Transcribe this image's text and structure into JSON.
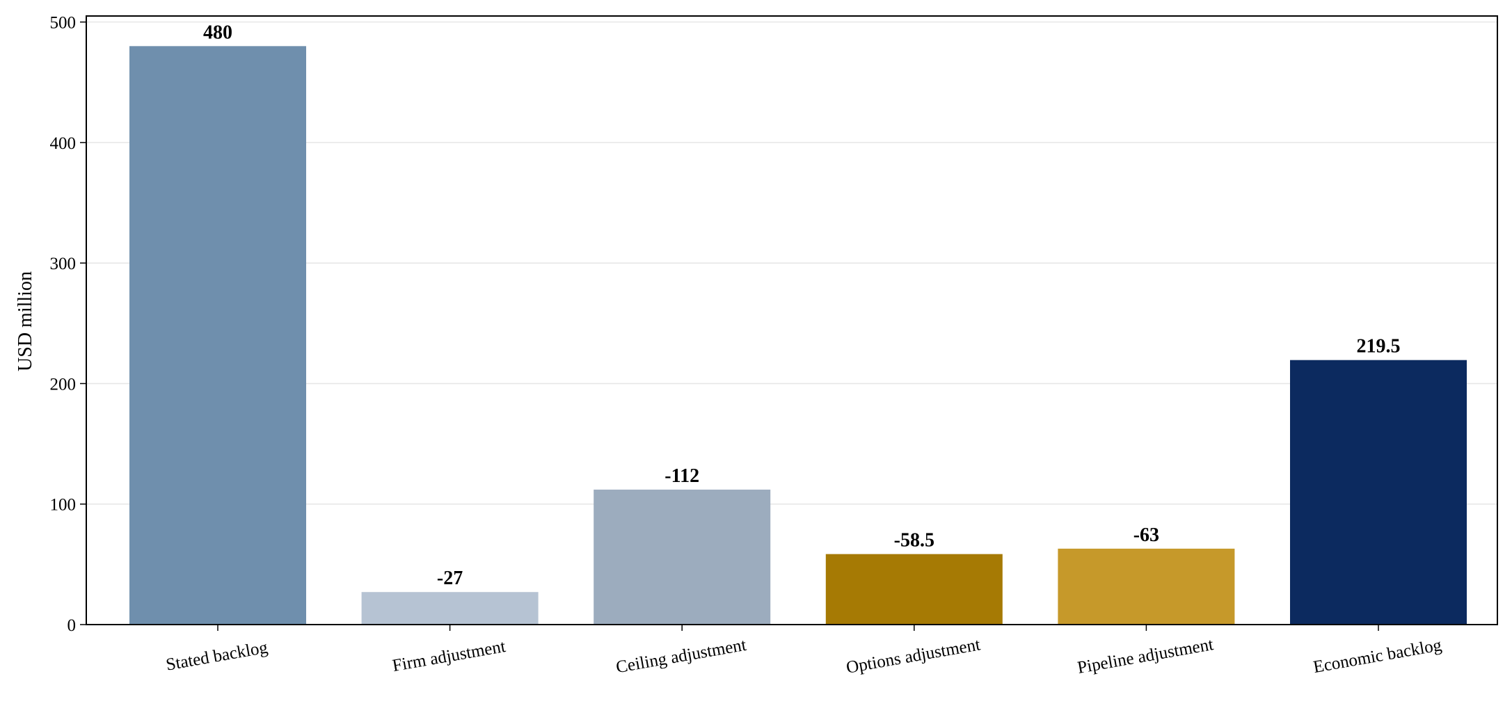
{
  "chart_data": {
    "type": "bar",
    "title": "",
    "xlabel": "",
    "ylabel": "USD million",
    "ylim": [
      0,
      505
    ],
    "yticks": [
      0,
      100,
      200,
      300,
      400,
      500
    ],
    "grid": "horizontal",
    "legend": "none",
    "categories": [
      "Stated backlog",
      "Firm adjustment",
      "Ceiling adjustment",
      "Options adjustment",
      "Pipeline adjustment",
      "Economic backlog"
    ],
    "values": [
      480,
      27,
      112,
      58.5,
      63,
      219.5
    ],
    "data_labels": [
      "480",
      "-27",
      "-112",
      "-58.5",
      "-63",
      "219.5"
    ],
    "colors": [
      "#6f8fad",
      "#b6c3d3",
      "#9cacbe",
      "#a67a04",
      "#c6992a",
      "#0c2a5f"
    ]
  }
}
